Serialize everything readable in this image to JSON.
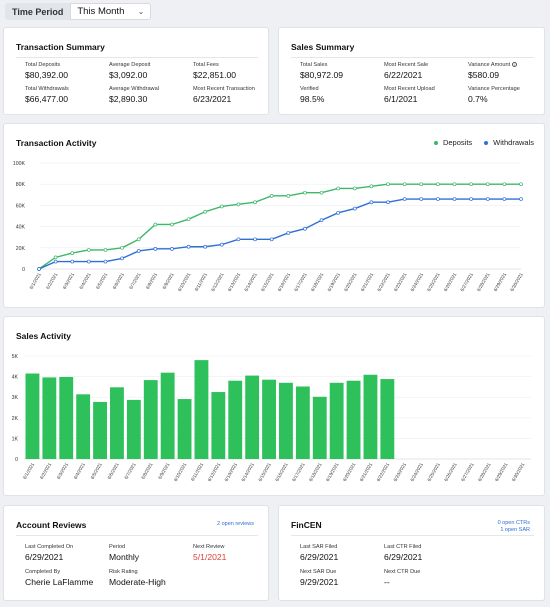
{
  "time_period": {
    "label": "Time Period",
    "selected": "This Month"
  },
  "transaction_summary": {
    "title": "Transaction Summary",
    "stats": [
      {
        "label": "Total Deposits",
        "value": "$80,392.00"
      },
      {
        "label": "Average Deposit",
        "value": "$3,092.00"
      },
      {
        "label": "Total Fees",
        "value": "$22,851.00"
      },
      {
        "label": "Total Withdrawals",
        "value": "$66,477.00"
      },
      {
        "label": "Average Withdrawal",
        "value": "$2,890.30"
      },
      {
        "label": "Most Recent Transaction",
        "value": "6/23/2021"
      }
    ]
  },
  "sales_summary": {
    "title": "Sales Summary",
    "stats": [
      {
        "label": "Total Sales",
        "value": "$80,972.09"
      },
      {
        "label": "Most Recent Sale",
        "value": "6/22/2021"
      },
      {
        "label": "Variance Amount",
        "value": "$580.09"
      },
      {
        "label": "Verified",
        "value": "98.5%"
      },
      {
        "label": "Most Recent Upload",
        "value": "6/1/2021"
      },
      {
        "label": "Variance Percentage",
        "value": "0.7%"
      }
    ]
  },
  "transaction_activity": {
    "title": "Transaction Activity",
    "chart_data": {
      "type": "line",
      "x": [
        "6/1/2021",
        "6/2/2021",
        "6/3/2021",
        "6/4/2021",
        "6/5/2021",
        "6/6/2021",
        "6/7/2021",
        "6/8/2021",
        "6/9/2021",
        "6/10/2021",
        "6/11/2021",
        "6/12/2021",
        "6/13/2021",
        "6/14/2021",
        "6/15/2021",
        "6/16/2021",
        "6/17/2021",
        "6/18/2021",
        "6/19/2021",
        "6/20/2021",
        "6/21/2021",
        "6/22/2021",
        "6/23/2021",
        "6/24/2021",
        "6/25/2021",
        "6/26/2021",
        "6/27/2021",
        "6/28/2021",
        "6/29/2021",
        "6/30/2021"
      ],
      "y_ticks": [
        "0",
        "20K",
        "40K",
        "60K",
        "80K",
        "100K"
      ],
      "ylim": [
        0,
        100000
      ],
      "legend_position": "top-right",
      "series": [
        {
          "name": "Deposits",
          "color": "#3cb868",
          "values": [
            0,
            11000,
            15000,
            18000,
            18000,
            20000,
            28000,
            42000,
            42000,
            47000,
            54000,
            59000,
            61000,
            63000,
            69000,
            69000,
            72000,
            72000,
            76000,
            76000,
            78000,
            80000,
            80000,
            80000,
            80000,
            80000,
            80000,
            80000,
            80000,
            80000
          ]
        },
        {
          "name": "Withdrawals",
          "color": "#2f6fd6",
          "values": [
            0,
            7000,
            7000,
            7000,
            7000,
            10000,
            17000,
            19000,
            19000,
            21000,
            21000,
            23000,
            28000,
            28000,
            28000,
            34000,
            38000,
            46000,
            53000,
            57000,
            63000,
            63000,
            66000,
            66000,
            66000,
            66000,
            66000,
            66000,
            66000,
            66000
          ]
        }
      ]
    }
  },
  "sales_activity": {
    "title": "Sales Activity",
    "chart_data": {
      "type": "bar",
      "categories": [
        "6/1/2021",
        "6/2/2021",
        "6/3/2021",
        "6/4/2021",
        "6/5/2021",
        "6/6/2021",
        "6/7/2021",
        "6/8/2021",
        "6/9/2021",
        "6/10/2021",
        "6/11/2021",
        "6/12/2021",
        "6/13/2021",
        "6/14/2021",
        "6/15/2021",
        "6/16/2021",
        "6/17/2021",
        "6/18/2021",
        "6/19/2021",
        "6/20/2021",
        "6/21/2021",
        "6/22/2021",
        "6/23/2021",
        "6/24/2021",
        "6/25/2021",
        "6/26/2021",
        "6/27/2021",
        "6/28/2021",
        "6/29/2021",
        "6/30/2021"
      ],
      "values": [
        4150,
        3960,
        3980,
        3140,
        2770,
        3480,
        2870,
        3830,
        4190,
        2910,
        4800,
        3250,
        3800,
        4050,
        3850,
        3700,
        3520,
        3020,
        3700,
        3800,
        4090,
        3880,
        null,
        null,
        null,
        null,
        null,
        null,
        null,
        null
      ],
      "y_ticks": [
        "0",
        "1K",
        "2K",
        "3K",
        "4K",
        "5K"
      ],
      "ylim": [
        0,
        5000
      ],
      "color": "#2ec05a"
    }
  },
  "account_reviews": {
    "title": "Account Reviews",
    "link": "2 open reviews",
    "stats": [
      {
        "label": "Last Completed On",
        "value": "6/29/2021"
      },
      {
        "label": "Period",
        "value": "Monthly"
      },
      {
        "label": "Next Review",
        "value": "5/1/2021"
      },
      {
        "label": "Completed By",
        "value": "Cherie LaFlamme"
      },
      {
        "label": "Risk Rating",
        "value": "Moderate-High"
      }
    ]
  },
  "fincen": {
    "title": "FinCEN",
    "link_ctr": "0 open CTRs",
    "link_sar": "1 open SAR",
    "stats": [
      {
        "label": "Last SAR Filed",
        "value": "6/29/2021"
      },
      {
        "label": "Last CTR Filed",
        "value": "6/29/2021"
      },
      {
        "label": "Next SAR Due",
        "value": "9/29/2021"
      },
      {
        "label": "Next CTR Due",
        "value": "--"
      }
    ]
  }
}
